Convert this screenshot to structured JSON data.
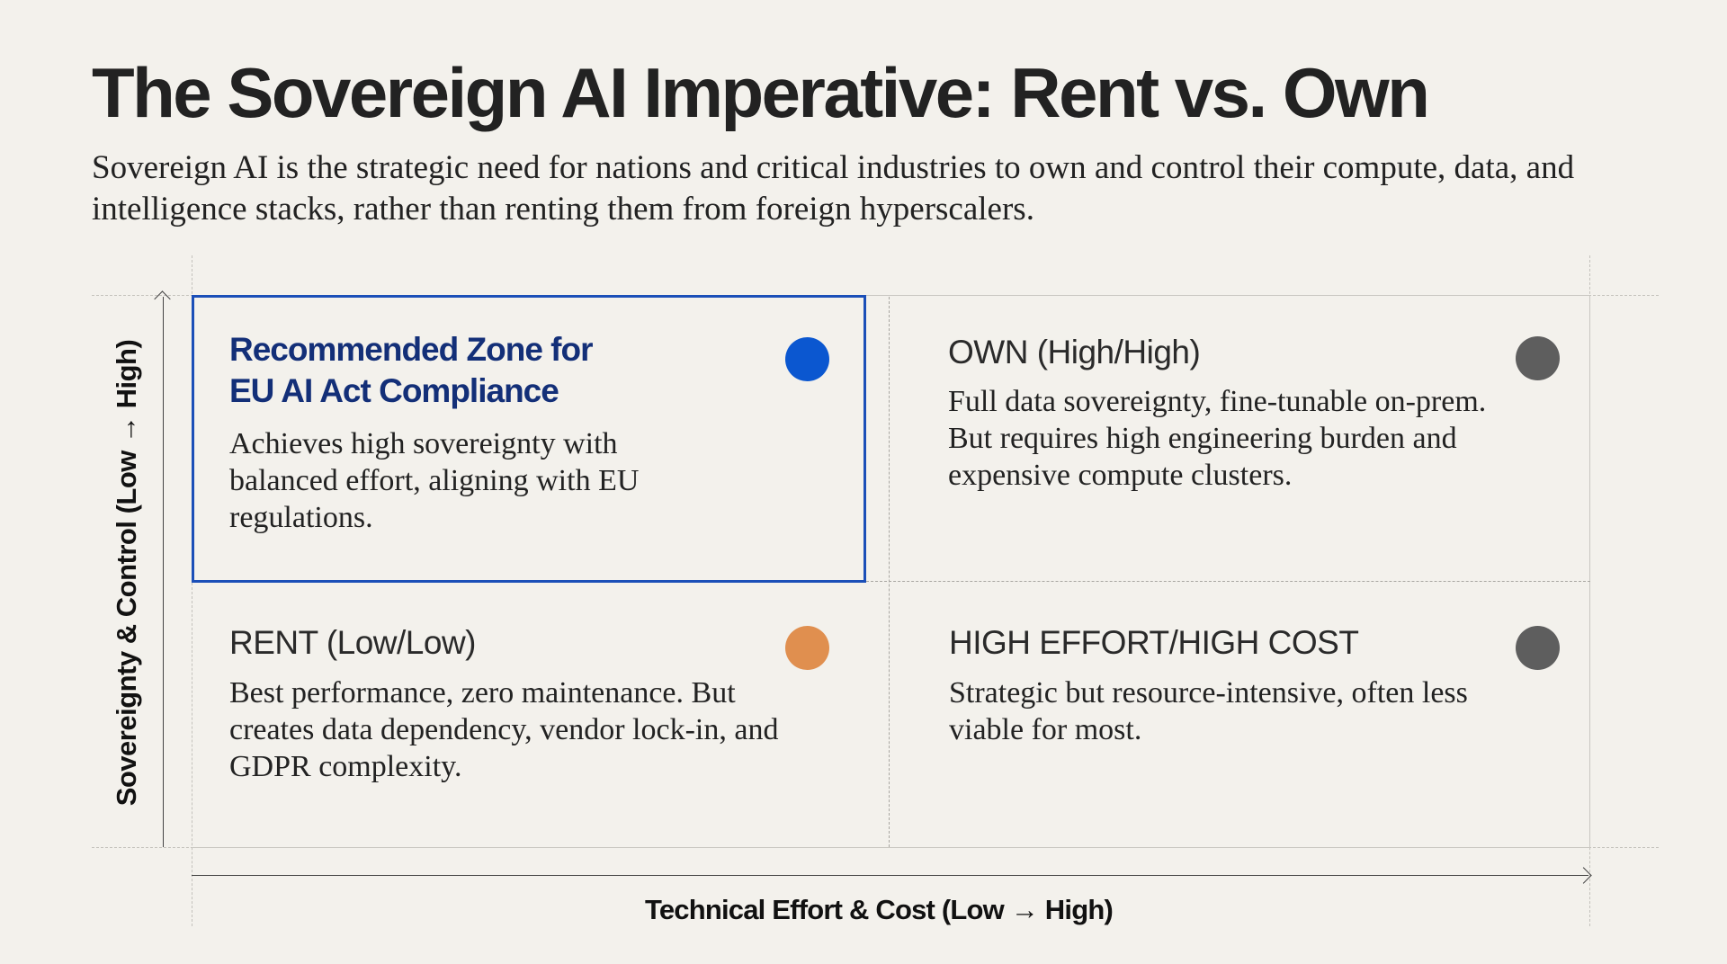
{
  "header": {
    "title": "The Sovereign AI Imperative: Rent vs. Own",
    "subtitle": "Sovereign AI is the strategic need for nations and critical industries to own and control their compute, data, and intelligence stacks, rather than renting them from foreign hyperscalers."
  },
  "axes": {
    "y_label": "Sovereignty & Control (Low → High)",
    "x_label": "Technical Effort & Cost (Low → High)"
  },
  "quadrants": {
    "recommended": {
      "title_line1": "Recommended Zone for",
      "title_line2": "EU AI Act Compliance",
      "body": "Achieves high sovereignty with balanced effort, aligning with EU regulations.",
      "dot_color": "#0b57d0",
      "highlighted": true
    },
    "own": {
      "title": "OWN (High/High)",
      "body": "Full data sovereignty, fine-tunable on-prem. But requires high engineering burden and expensive compute clusters.",
      "dot_color": "#5e5e5e"
    },
    "rent": {
      "title": "RENT (Low/Low)",
      "body": "Best performance, zero maintenance. But creates data dependency, vendor lock-in, and GDPR complexity.",
      "dot_color": "#e08f4f"
    },
    "high_effort": {
      "title": "HIGH EFFORT/HIGH COST",
      "body": "Strategic but resource-intensive, often less viable for most.",
      "dot_color": "#5e5e5e"
    }
  },
  "colors": {
    "background": "#f3f1ec",
    "highlight_border": "#1b4fb8",
    "highlight_title": "#132f78"
  }
}
